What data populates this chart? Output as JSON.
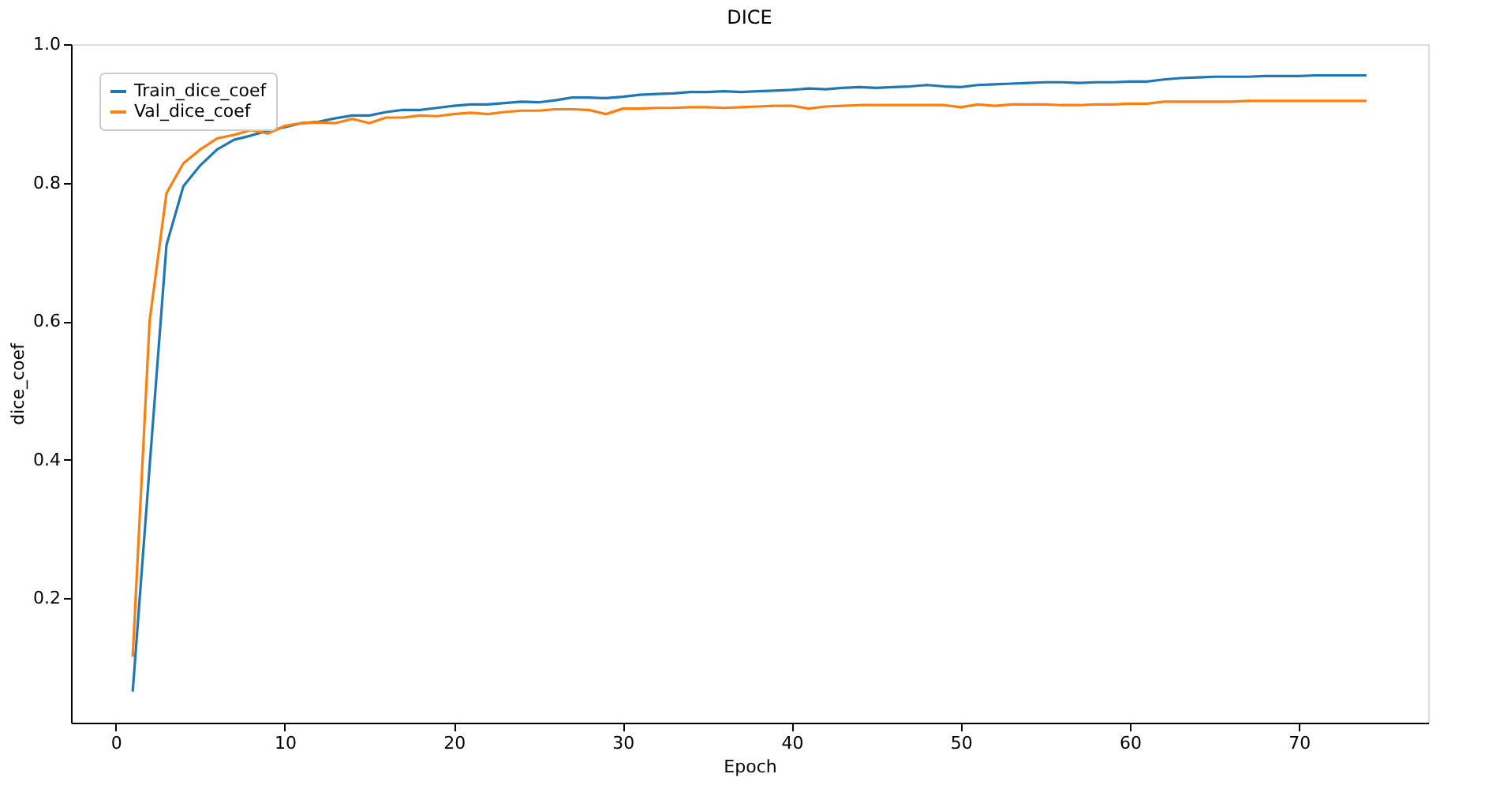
{
  "chart_data": {
    "type": "line",
    "title": "DICE",
    "xlabel": "Epoch",
    "ylabel": "dice_coef",
    "x": [
      1,
      2,
      3,
      4,
      5,
      6,
      7,
      8,
      9,
      10,
      11,
      12,
      13,
      14,
      15,
      16,
      17,
      18,
      19,
      20,
      21,
      22,
      23,
      24,
      25,
      26,
      27,
      28,
      29,
      30,
      31,
      32,
      33,
      34,
      35,
      36,
      37,
      38,
      39,
      40,
      41,
      42,
      43,
      44,
      45,
      46,
      47,
      48,
      49,
      50,
      51,
      52,
      53,
      54,
      55,
      56,
      57,
      58,
      59,
      60,
      61,
      62,
      63,
      64,
      65,
      66,
      67,
      68,
      69,
      70,
      71,
      72,
      73,
      74
    ],
    "series": [
      {
        "name": "Train_dice_coef",
        "color": "#1f77b4",
        "values": [
          0.065,
          0.39,
          0.71,
          0.795,
          0.825,
          0.848,
          0.862,
          0.868,
          0.875,
          0.88,
          0.886,
          0.888,
          0.893,
          0.897,
          0.897,
          0.902,
          0.905,
          0.905,
          0.908,
          0.911,
          0.913,
          0.913,
          0.915,
          0.917,
          0.916,
          0.919,
          0.923,
          0.923,
          0.922,
          0.924,
          0.927,
          0.928,
          0.929,
          0.931,
          0.931,
          0.932,
          0.931,
          0.932,
          0.933,
          0.934,
          0.936,
          0.935,
          0.937,
          0.938,
          0.937,
          0.938,
          0.939,
          0.941,
          0.939,
          0.938,
          0.941,
          0.942,
          0.943,
          0.944,
          0.945,
          0.945,
          0.944,
          0.945,
          0.945,
          0.946,
          0.946,
          0.949,
          0.951,
          0.952,
          0.953,
          0.953,
          0.953,
          0.954,
          0.954,
          0.954,
          0.955,
          0.955,
          0.955,
          0.955
        ]
      },
      {
        "name": "Val_dice_coef",
        "color": "#ff7f0e",
        "values": [
          0.115,
          0.6,
          0.785,
          0.828,
          0.848,
          0.864,
          0.869,
          0.876,
          0.871,
          0.882,
          0.886,
          0.887,
          0.886,
          0.892,
          0.886,
          0.894,
          0.894,
          0.897,
          0.896,
          0.899,
          0.901,
          0.899,
          0.902,
          0.904,
          0.904,
          0.906,
          0.906,
          0.905,
          0.899,
          0.907,
          0.907,
          0.908,
          0.908,
          0.909,
          0.909,
          0.908,
          0.909,
          0.91,
          0.911,
          0.911,
          0.907,
          0.91,
          0.911,
          0.912,
          0.912,
          0.912,
          0.912,
          0.912,
          0.912,
          0.909,
          0.913,
          0.911,
          0.913,
          0.913,
          0.913,
          0.912,
          0.912,
          0.913,
          0.913,
          0.914,
          0.914,
          0.917,
          0.917,
          0.917,
          0.917,
          0.917,
          0.918,
          0.918,
          0.918,
          0.918,
          0.918,
          0.918,
          0.918,
          0.918
        ]
      }
    ],
    "xlim": [
      -2.65,
      77.65
    ],
    "xticks": [
      0,
      10,
      20,
      30,
      40,
      50,
      60,
      70
    ],
    "ylim": [
      0.02,
      1.0
    ],
    "yticks": [
      0.2,
      0.4,
      0.6,
      0.8,
      {
        "value": 1.0,
        "label": "1.0"
      }
    ],
    "grid": false,
    "legend": "top left",
    "marker": "none",
    "line_style": "solid"
  }
}
